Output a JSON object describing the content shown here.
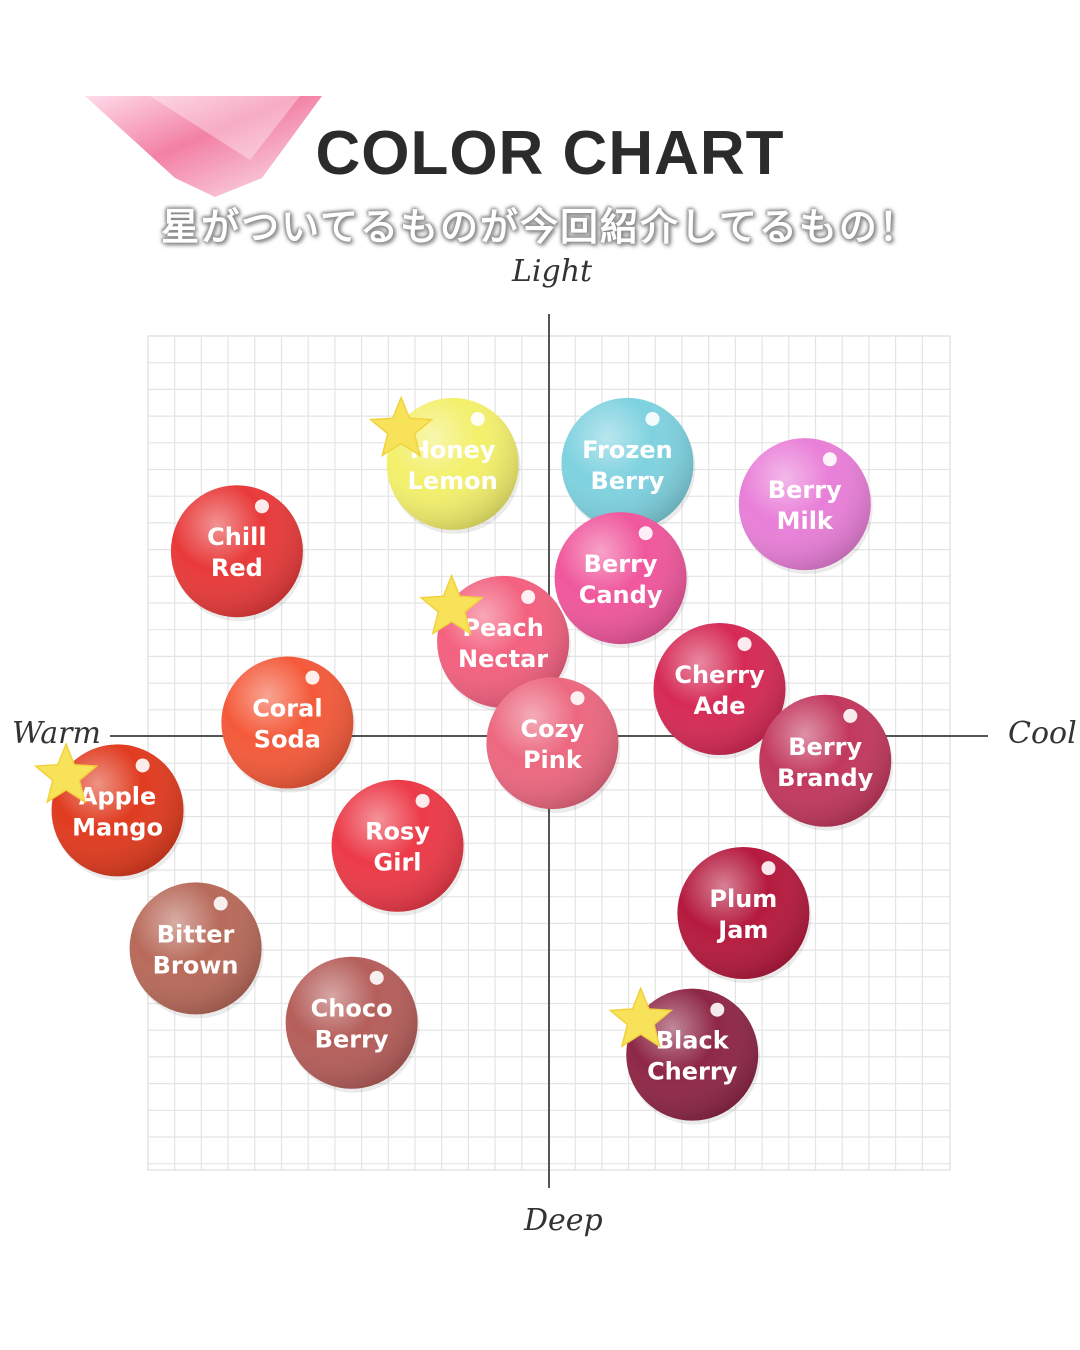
{
  "header": {
    "title": "COLOR CHART",
    "subtitle": "星がついてるものが今回紹介してるもの！"
  },
  "colors": {
    "grid_line": "#e4e4e4",
    "axis_line": "#555555",
    "star": "#f7e25a",
    "decor_pink": "#f06a95"
  },
  "chart_data": {
    "type": "scatter",
    "axes": {
      "top": "Light",
      "bottom": "Deep",
      "left": "Warm",
      "right": "Cool"
    },
    "xlim": [
      -10,
      10
    ],
    "ylim": [
      -10,
      10
    ],
    "grid": true,
    "points": [
      {
        "label": "Honey Lemon",
        "lines": [
          "Honey",
          "Lemon"
        ],
        "x": -2.1,
        "y": 8.1,
        "color": "#f3f06c",
        "text_color": "#e6dd88",
        "starred": true
      },
      {
        "label": "Frozen Berry",
        "lines": [
          "Frozen",
          "Berry"
        ],
        "x": 2.3,
        "y": 8.1,
        "color": "#7fd2e0",
        "text_color": "#ffffff",
        "starred": false
      },
      {
        "label": "Berry Milk",
        "lines": [
          "Berry",
          "Milk"
        ],
        "x": 7.5,
        "y": 6.9,
        "color": "#e97fd8",
        "text_color": "#ffffff",
        "starred": false
      },
      {
        "label": "Chill Red",
        "lines": [
          "Chill",
          "Red"
        ],
        "x": -6.8,
        "y": 5.5,
        "color": "#e83a3a",
        "text_color": "#ffffff",
        "starred": false
      },
      {
        "label": "Berry Candy",
        "lines": [
          "Berry",
          "Candy"
        ],
        "x": 2.1,
        "y": 4.7,
        "color": "#f0579c",
        "text_color": "#ffffff",
        "starred": false
      },
      {
        "label": "Peach Nectar",
        "lines": [
          "Peach",
          "Nectar"
        ],
        "x": -1.0,
        "y": 2.8,
        "color": "#f3617f",
        "text_color": "#ffffff",
        "starred": true
      },
      {
        "label": "Cherry Ade",
        "lines": [
          "Cherry",
          "Ade"
        ],
        "x": 5.0,
        "y": 1.4,
        "color": "#d62a55",
        "text_color": "#ffffff",
        "starred": false
      },
      {
        "label": "Coral Soda",
        "lines": [
          "Coral",
          "Soda"
        ],
        "x": -5.7,
        "y": 0.4,
        "color": "#f45a3a",
        "text_color": "#ffffff",
        "starred": false
      },
      {
        "label": "Cozy Pink",
        "lines": [
          "Cozy",
          "Pink"
        ],
        "x": 0.1,
        "y": -0.2,
        "color": "#ec6880",
        "text_color": "#ffffff",
        "starred": false
      },
      {
        "label": "Berry Brandy",
        "lines": [
          "Berry",
          "Brandy"
        ],
        "x": 8.1,
        "y": -0.7,
        "color": "#c2385d",
        "text_color": "#ffffff",
        "starred": false
      },
      {
        "label": "Apple Mango",
        "lines": [
          "Apple",
          "Mango"
        ],
        "x": -9.4,
        "y": -2.1,
        "color": "#e03b1f",
        "text_color": "#ffffff",
        "starred": true
      },
      {
        "label": "Rosy Girl",
        "lines": [
          "Rosy",
          "Girl"
        ],
        "x": -3.3,
        "y": -3.1,
        "color": "#ec3a48",
        "text_color": "#ffffff",
        "starred": false
      },
      {
        "label": "Plum Jam",
        "lines": [
          "Plum",
          "Jam"
        ],
        "x": 5.7,
        "y": -5.0,
        "color": "#b51a3e",
        "text_color": "#ffffff",
        "starred": false
      },
      {
        "label": "Bitter Brown",
        "lines": [
          "Bitter",
          "Brown"
        ],
        "x": -7.7,
        "y": -6.0,
        "color": "#b86a5a",
        "text_color": "#ffffff",
        "starred": false
      },
      {
        "label": "Choco Berry",
        "lines": [
          "Choco",
          "Berry"
        ],
        "x": -4.3,
        "y": -8.1,
        "color": "#b55e5a",
        "text_color": "#ffffff",
        "starred": false
      },
      {
        "label": "Black Cherry",
        "lines": [
          "Black",
          "Cherry"
        ],
        "x": 4.2,
        "y": -9.0,
        "color": "#8e2746",
        "text_color": "#ffffff",
        "starred": true
      }
    ]
  }
}
